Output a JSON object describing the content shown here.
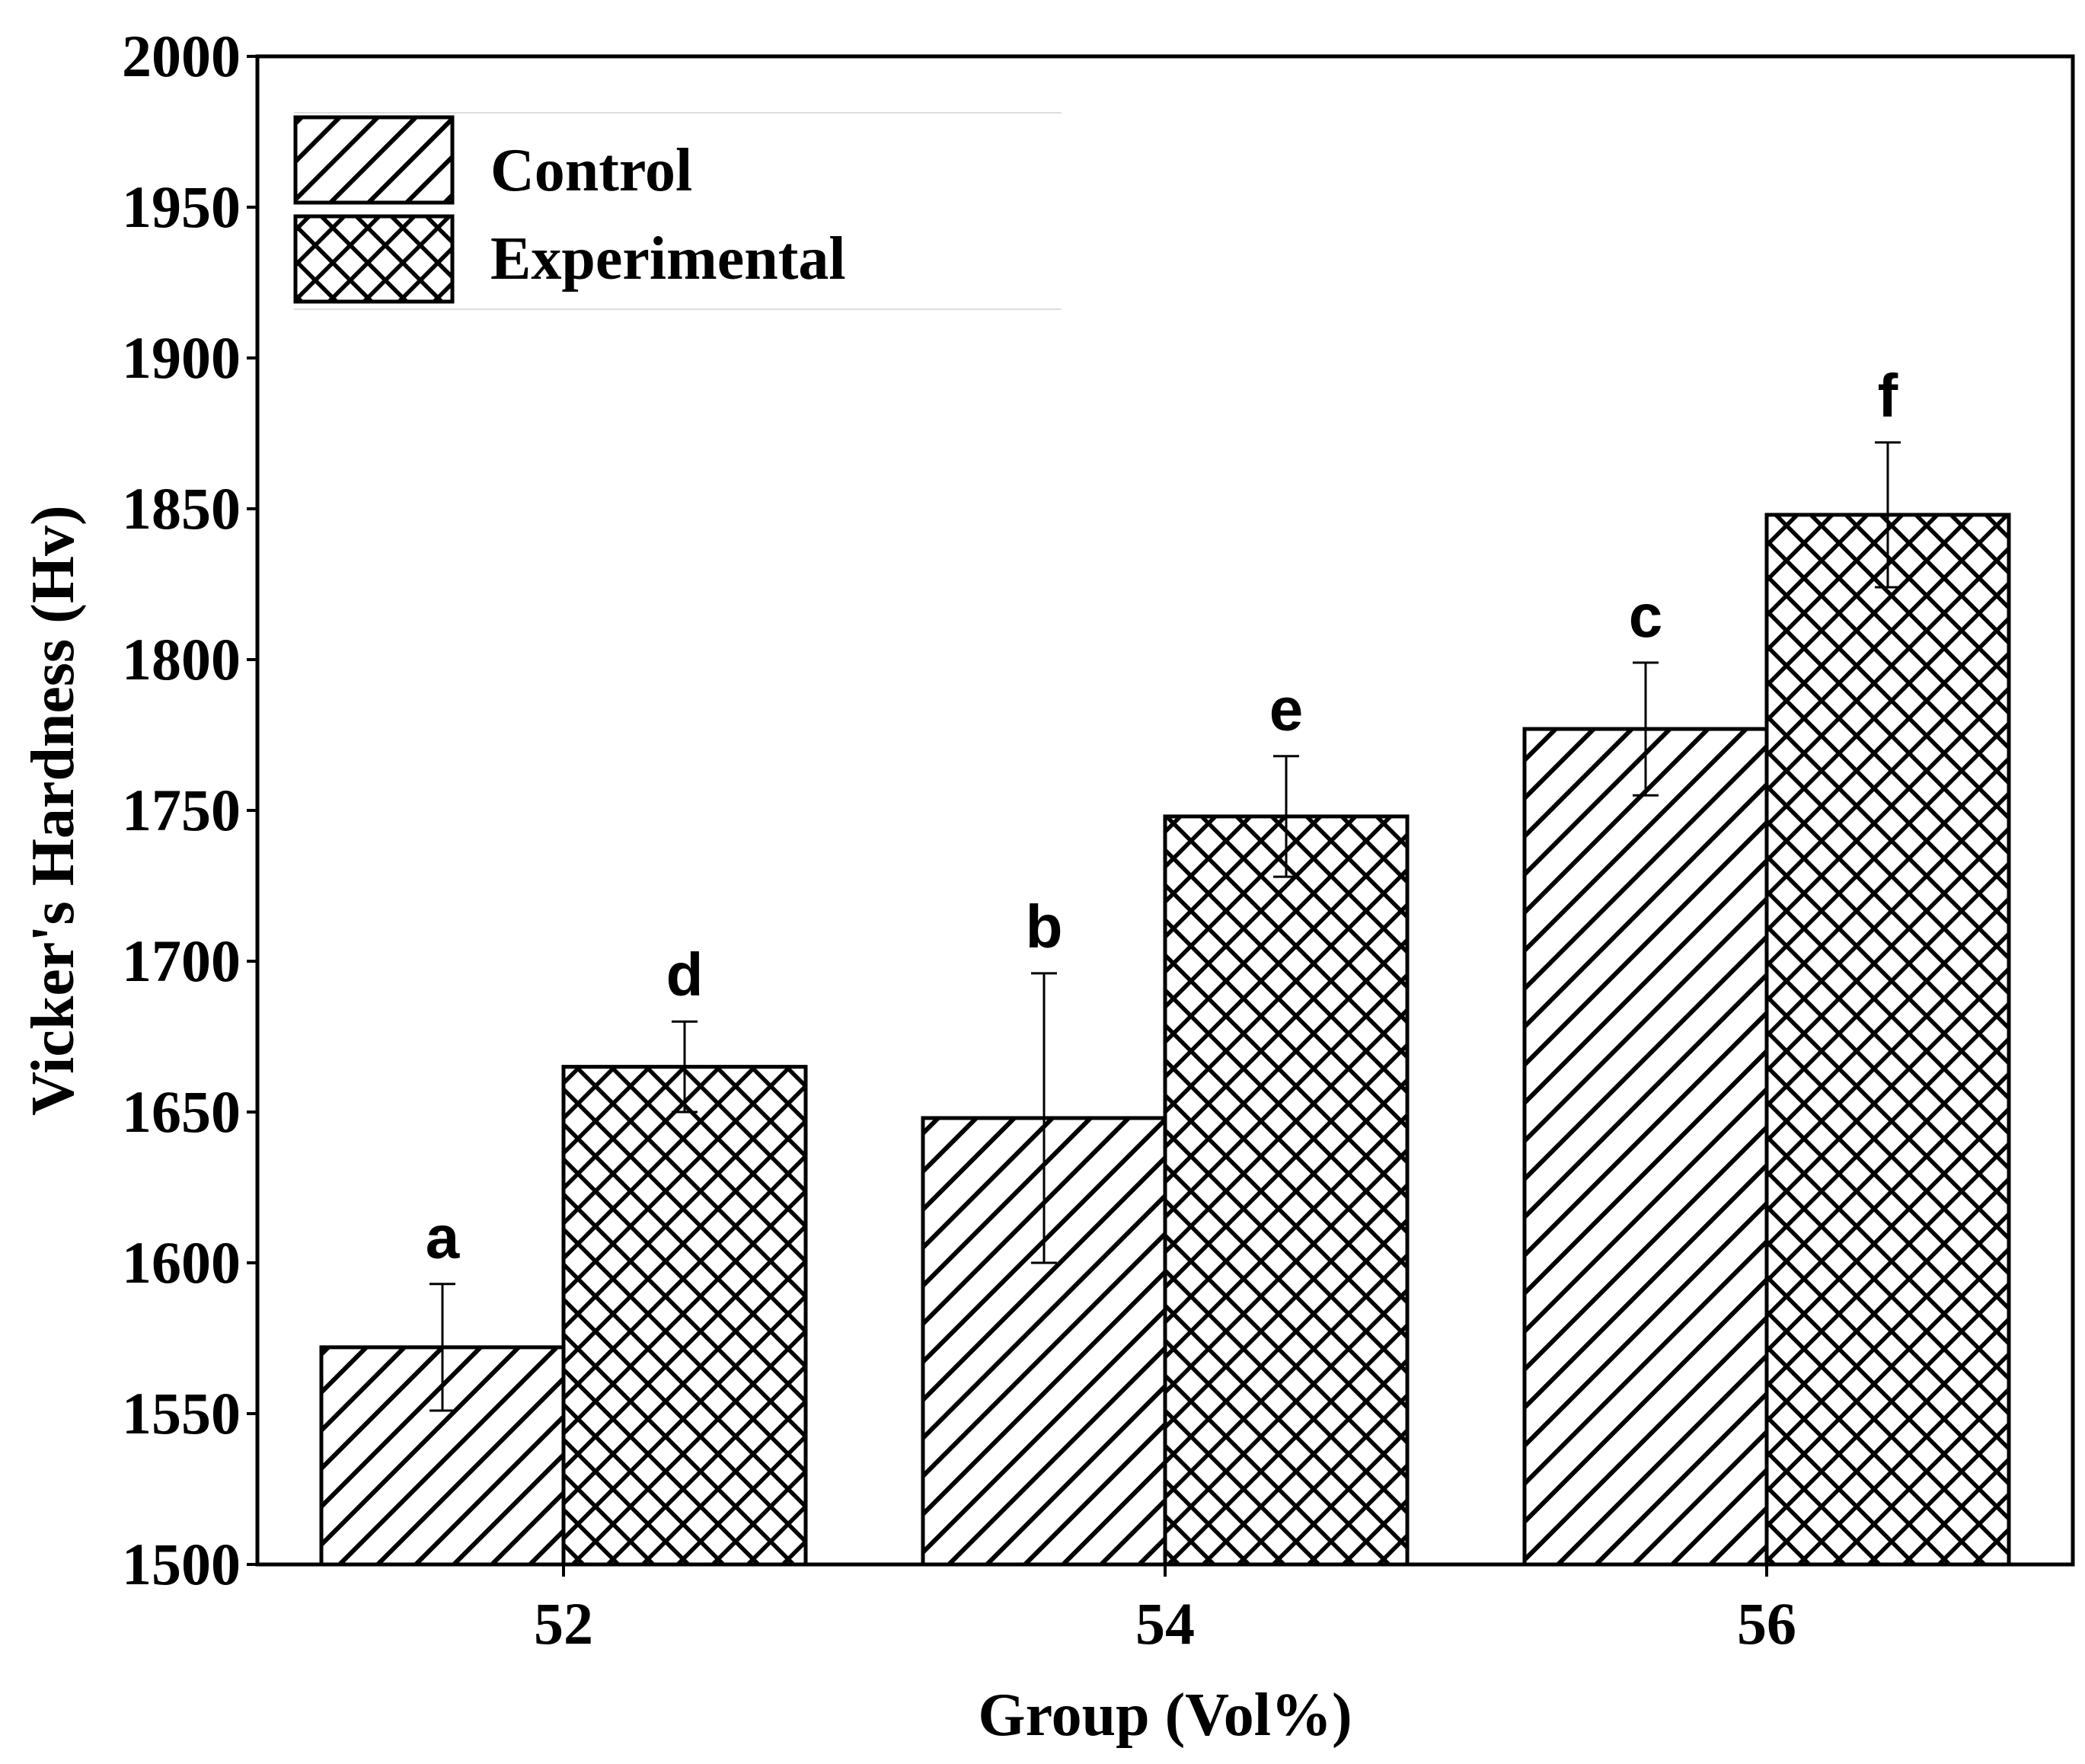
{
  "chart_data": {
    "type": "bar",
    "xlabel": "Group (Vol%)",
    "ylabel": "Vicker's Hardness (Hv)",
    "ylim": [
      1500,
      2000
    ],
    "yticks": [
      "1500",
      "1550",
      "1600",
      "1650",
      "1700",
      "1750",
      "1800",
      "1850",
      "1900",
      "1950",
      "2000"
    ],
    "categories": [
      "52",
      "54",
      "56"
    ],
    "series": [
      {
        "name": "Control",
        "pattern": "diagonal",
        "values": [
          1572,
          1648,
          1777
        ],
        "errors": [
          21,
          48,
          22
        ],
        "sig_labels": [
          "a",
          "b",
          "c"
        ]
      },
      {
        "name": "Experimental",
        "pattern": "crosshatch",
        "values": [
          1665,
          1748,
          1848
        ],
        "errors": [
          15,
          20,
          24
        ],
        "sig_labels": [
          "d",
          "e",
          "f"
        ]
      }
    ],
    "legend_position": "top-left",
    "colors": {
      "bar_fill": "#ffffff",
      "stroke": "#000000"
    }
  }
}
